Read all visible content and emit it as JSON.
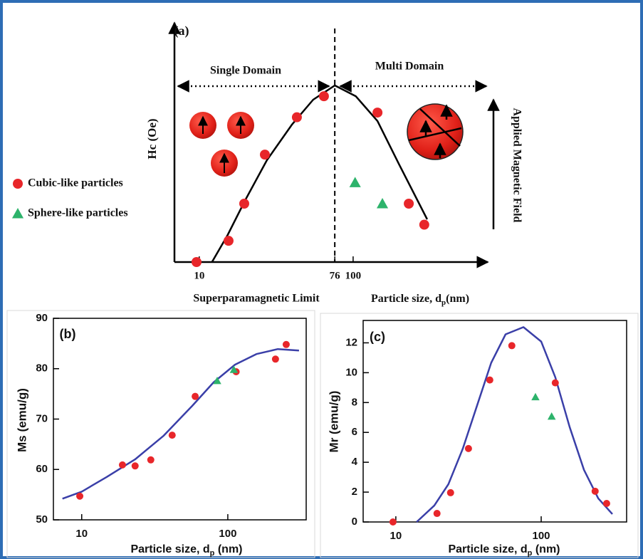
{
  "chart_data": [
    {
      "type": "scatter",
      "title": "(a)",
      "y_label": "Hc (Oe)",
      "x_label": [
        "Particle size, d",
        "p",
        "(nm)"
      ],
      "annotations": [
        "Single Domain",
        "Multi Domain",
        "Superparamagnetic Limit",
        "Applied Magnetic Field"
      ],
      "log_x": true,
      "xlim": [
        6.9,
        750
      ],
      "ylim": [
        0,
        100
      ],
      "xticks": [
        10,
        76,
        100
      ],
      "divider": 76,
      "series": [
        {
          "name": "Cubic-like particles",
          "color": "#e8262a",
          "marker": "circle",
          "x": [
            9.6,
            15.5,
            19.6,
            26.7,
            43.1,
            64.6,
            144,
            230,
            290
          ],
          "values": [
            0,
            9.1,
            25,
            46,
            62,
            71,
            64,
            25,
            16
          ]
        },
        {
          "name": "Sphere-like particles",
          "color": "#2db36b",
          "marker": "triangle",
          "x": [
            103,
            155
          ],
          "values": [
            34,
            25
          ]
        }
      ],
      "curve": {
        "color": "#000000",
        "x": [
          12.1,
          15.3,
          20,
          27.5,
          40,
          55,
          76,
          104,
          144,
          198,
          303
        ],
        "values": [
          0,
          11.6,
          26.8,
          43.6,
          58.8,
          69.5,
          75.6,
          71,
          60.4,
          42.1,
          18.3
        ]
      }
    },
    {
      "type": "scatter",
      "title": "(b)",
      "y_label": "Ms (emu/g)",
      "x_label": [
        "Particle size, d",
        "p",
        " (nm)"
      ],
      "log_x": true,
      "xlim": [
        6.4,
        344
      ],
      "ylim": [
        50,
        90
      ],
      "xticks": [
        10,
        100
      ],
      "yticks": [
        50,
        60,
        70,
        80,
        90
      ],
      "series": [
        {
          "color": "#e8262a",
          "marker": "circle",
          "x": [
            9.7,
            19.0,
            23.2,
            29.7,
            41.6,
            59.8,
            114,
            212,
            251
          ],
          "values": [
            54.7,
            60.9,
            60.7,
            61.9,
            66.8,
            74.5,
            79.4,
            81.9,
            84.8
          ]
        },
        {
          "color": "#2db36b",
          "marker": "triangle",
          "x": [
            84.6,
            110
          ],
          "values": [
            77.6,
            79.8
          ]
        }
      ],
      "curve": {
        "color": "#3a3fa8",
        "x": [
          7.38,
          10,
          14.8,
          23.2,
          36.4,
          57,
          80,
          112,
          157,
          220,
          307
        ],
        "values": [
          54.2,
          55.6,
          58.5,
          62.0,
          66.7,
          72.6,
          77.3,
          80.8,
          82.9,
          83.9,
          83.6
        ]
      }
    },
    {
      "type": "scatter",
      "title": "(c)",
      "y_label": "Mr (emu/g)",
      "x_label": [
        "Particle size, d",
        "p",
        " (nm)"
      ],
      "log_x": true,
      "xlim": [
        5.96,
        387
      ],
      "ylim": [
        0,
        13.5
      ],
      "xticks": [
        10,
        100
      ],
      "yticks": [
        0,
        2,
        4,
        6,
        8,
        10,
        12
      ],
      "series": [
        {
          "color": "#e8262a",
          "marker": "circle",
          "x": [
            9.56,
            19.2,
            23.8,
            31.6,
            44.3,
            62.8,
            125,
            235,
            282
          ],
          "values": [
            0,
            0.57,
            1.96,
            4.92,
            9.51,
            11.81,
            9.32,
            2.06,
            1.24
          ]
        },
        {
          "color": "#2db36b",
          "marker": "triangle",
          "x": [
            91.3,
            118
          ],
          "values": [
            8.37,
            7.07
          ]
        }
      ],
      "curve": {
        "color": "#3a3fa8",
        "x": [
          13.9,
          18.4,
          23.0,
          28.9,
          36.2,
          45.3,
          56.9,
          75.5,
          100,
          125,
          157,
          197,
          247,
          309
        ],
        "values": [
          0,
          1.1,
          2.53,
          4.92,
          7.79,
          10.66,
          12.57,
          13.05,
          12.09,
          9.7,
          6.36,
          3.49,
          1.58,
          0.53
        ]
      }
    }
  ]
}
